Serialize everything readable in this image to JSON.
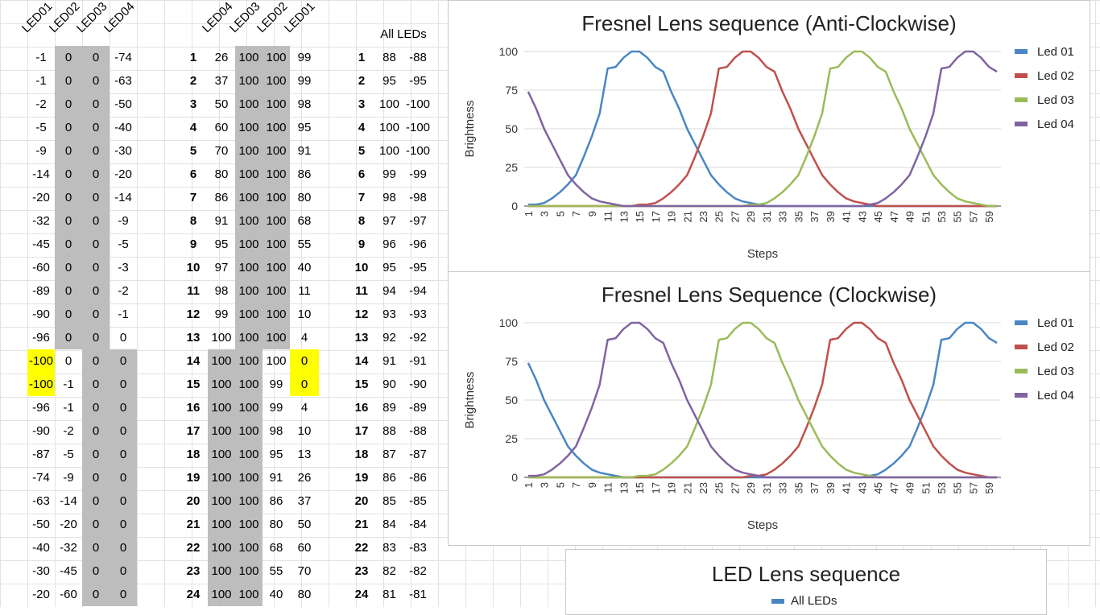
{
  "sheet": {
    "left_headers": [
      "LED01",
      "LED02",
      "LED03",
      "LED04"
    ],
    "mid_headers": [
      "LED04",
      "LED03",
      "LED02",
      "LED01"
    ],
    "right_header": "All LEDs",
    "left_rows": [
      [
        "-1",
        "0",
        "0",
        "-74"
      ],
      [
        "-1",
        "0",
        "0",
        "-63"
      ],
      [
        "-2",
        "0",
        "0",
        "-50"
      ],
      [
        "-5",
        "0",
        "0",
        "-40"
      ],
      [
        "-9",
        "0",
        "0",
        "-30"
      ],
      [
        "-14",
        "0",
        "0",
        "-20"
      ],
      [
        "-20",
        "0",
        "0",
        "-14"
      ],
      [
        "-32",
        "0",
        "0",
        "-9"
      ],
      [
        "-45",
        "0",
        "0",
        "-5"
      ],
      [
        "-60",
        "0",
        "0",
        "-3"
      ],
      [
        "-89",
        "0",
        "0",
        "-2"
      ],
      [
        "-90",
        "0",
        "0",
        "-1"
      ],
      [
        "-96",
        "0",
        "0",
        "0"
      ],
      [
        "-100",
        "0",
        "0",
        "0"
      ],
      [
        "-100",
        "-1",
        "0",
        "0"
      ],
      [
        "-96",
        "-1",
        "0",
        "0"
      ],
      [
        "-90",
        "-2",
        "0",
        "0"
      ],
      [
        "-87",
        "-5",
        "0",
        "0"
      ],
      [
        "-74",
        "-9",
        "0",
        "0"
      ],
      [
        "-63",
        "-14",
        "0",
        "0"
      ],
      [
        "-50",
        "-20",
        "0",
        "0"
      ],
      [
        "-40",
        "-32",
        "0",
        "0"
      ],
      [
        "-30",
        "-45",
        "0",
        "0"
      ],
      [
        "-20",
        "-60",
        "0",
        "0"
      ]
    ],
    "mid_rows": [
      [
        "1",
        "26",
        "100",
        "100",
        "99"
      ],
      [
        "2",
        "37",
        "100",
        "100",
        "99"
      ],
      [
        "3",
        "50",
        "100",
        "100",
        "98"
      ],
      [
        "4",
        "60",
        "100",
        "100",
        "95"
      ],
      [
        "5",
        "70",
        "100",
        "100",
        "91"
      ],
      [
        "6",
        "80",
        "100",
        "100",
        "86"
      ],
      [
        "7",
        "86",
        "100",
        "100",
        "80"
      ],
      [
        "8",
        "91",
        "100",
        "100",
        "68"
      ],
      [
        "9",
        "95",
        "100",
        "100",
        "55"
      ],
      [
        "10",
        "97",
        "100",
        "100",
        "40"
      ],
      [
        "11",
        "98",
        "100",
        "100",
        "11"
      ],
      [
        "12",
        "99",
        "100",
        "100",
        "10"
      ],
      [
        "13",
        "100",
        "100",
        "100",
        "4"
      ],
      [
        "14",
        "100",
        "100",
        "100",
        "0"
      ],
      [
        "15",
        "100",
        "100",
        "99",
        "0"
      ],
      [
        "16",
        "100",
        "100",
        "99",
        "4"
      ],
      [
        "17",
        "100",
        "100",
        "98",
        "10"
      ],
      [
        "18",
        "100",
        "100",
        "95",
        "13"
      ],
      [
        "19",
        "100",
        "100",
        "91",
        "26"
      ],
      [
        "20",
        "100",
        "100",
        "86",
        "37"
      ],
      [
        "21",
        "100",
        "100",
        "80",
        "50"
      ],
      [
        "22",
        "100",
        "100",
        "68",
        "60"
      ],
      [
        "23",
        "100",
        "100",
        "55",
        "70"
      ],
      [
        "24",
        "100",
        "100",
        "40",
        "80"
      ]
    ],
    "right_rows": [
      [
        "1",
        "88",
        "-88"
      ],
      [
        "2",
        "95",
        "-95"
      ],
      [
        "3",
        "100",
        "-100"
      ],
      [
        "4",
        "100",
        "-100"
      ],
      [
        "5",
        "100",
        "-100"
      ],
      [
        "6",
        "99",
        "-99"
      ],
      [
        "7",
        "98",
        "-98"
      ],
      [
        "8",
        "97",
        "-97"
      ],
      [
        "9",
        "96",
        "-96"
      ],
      [
        "10",
        "95",
        "-95"
      ],
      [
        "11",
        "94",
        "-94"
      ],
      [
        "12",
        "93",
        "-93"
      ],
      [
        "13",
        "92",
        "-92"
      ],
      [
        "14",
        "91",
        "-91"
      ],
      [
        "15",
        "90",
        "-90"
      ],
      [
        "16",
        "89",
        "-89"
      ],
      [
        "17",
        "88",
        "-88"
      ],
      [
        "18",
        "87",
        "-87"
      ],
      [
        "19",
        "86",
        "-86"
      ],
      [
        "20",
        "85",
        "-85"
      ],
      [
        "21",
        "84",
        "-84"
      ],
      [
        "22",
        "83",
        "-83"
      ],
      [
        "23",
        "82",
        "-82"
      ],
      [
        "24",
        "81",
        "-81"
      ]
    ]
  },
  "chart_data": [
    {
      "type": "line",
      "title": "Fresnel Lens sequence (Anti-Clockwise)",
      "xlabel": "Steps",
      "ylabel": "Brightness",
      "x": [
        1,
        2,
        3,
        4,
        5,
        6,
        7,
        8,
        9,
        10,
        11,
        12,
        13,
        14,
        15,
        16,
        17,
        18,
        19,
        20,
        21,
        22,
        23,
        24,
        25,
        26,
        27,
        28,
        29,
        30,
        31,
        32,
        33,
        34,
        35,
        36,
        37,
        38,
        39,
        40,
        41,
        42,
        43,
        44,
        45,
        46,
        47,
        48,
        49,
        50,
        51,
        52,
        53,
        54,
        55,
        56,
        57,
        58,
        59,
        60
      ],
      "xticks": [
        "1",
        "3",
        "5",
        "7",
        "9",
        "11",
        "13",
        "15",
        "17",
        "19",
        "21",
        "23",
        "25",
        "27",
        "29",
        "31",
        "33",
        "35",
        "37",
        "39",
        "41",
        "43",
        "45",
        "47",
        "49",
        "51",
        "53",
        "55",
        "57",
        "59"
      ],
      "ylim": [
        0,
        100
      ],
      "yticks": [
        "0",
        "25",
        "50",
        "75",
        "100"
      ],
      "grid": true,
      "legend_position": "right",
      "series": [
        {
          "name": "Led 01",
          "color": "#4a86c5",
          "values": [
            1,
            1,
            2,
            5,
            9,
            14,
            20,
            32,
            45,
            60,
            89,
            90,
            96,
            100,
            100,
            96,
            90,
            87,
            74,
            63,
            50,
            40,
            30,
            20,
            14,
            9,
            5,
            3,
            2,
            1,
            0,
            0,
            0,
            0,
            0,
            0,
            0,
            0,
            0,
            0,
            0,
            0,
            0,
            0,
            0,
            0,
            0,
            0,
            0,
            0,
            0,
            0,
            0,
            0,
            0,
            0,
            0,
            0,
            0,
            0
          ]
        },
        {
          "name": "Led 02",
          "color": "#c0504d",
          "values": [
            0,
            0,
            0,
            0,
            0,
            0,
            0,
            0,
            0,
            0,
            0,
            0,
            0,
            0,
            1,
            1,
            2,
            5,
            9,
            14,
            20,
            32,
            45,
            60,
            89,
            90,
            96,
            100,
            100,
            96,
            90,
            87,
            74,
            63,
            50,
            40,
            30,
            20,
            14,
            9,
            5,
            3,
            2,
            1,
            0,
            0,
            0,
            0,
            0,
            0,
            0,
            0,
            0,
            0,
            0,
            0,
            0,
            0,
            0,
            0
          ]
        },
        {
          "name": "Led 03",
          "color": "#9bbb59",
          "values": [
            0,
            0,
            0,
            0,
            0,
            0,
            0,
            0,
            0,
            0,
            0,
            0,
            0,
            0,
            0,
            0,
            0,
            0,
            0,
            0,
            0,
            0,
            0,
            0,
            0,
            0,
            0,
            0,
            1,
            1,
            2,
            5,
            9,
            14,
            20,
            32,
            45,
            60,
            89,
            90,
            96,
            100,
            100,
            96,
            90,
            87,
            74,
            63,
            50,
            40,
            30,
            20,
            14,
            9,
            5,
            3,
            2,
            1,
            0,
            0
          ]
        },
        {
          "name": "Led 04",
          "color": "#8064a2",
          "values": [
            74,
            63,
            50,
            40,
            30,
            20,
            14,
            9,
            5,
            3,
            2,
            1,
            0,
            0,
            0,
            0,
            0,
            0,
            0,
            0,
            0,
            0,
            0,
            0,
            0,
            0,
            0,
            0,
            0,
            0,
            0,
            0,
            0,
            0,
            0,
            0,
            0,
            0,
            0,
            0,
            0,
            0,
            0,
            1,
            2,
            5,
            9,
            14,
            20,
            32,
            45,
            60,
            89,
            90,
            96,
            100,
            100,
            96,
            90,
            87
          ]
        }
      ]
    },
    {
      "type": "line",
      "title": "Fresnel Lens Sequence (Clockwise)",
      "xlabel": "Steps",
      "ylabel": "Brightness",
      "x": [
        1,
        2,
        3,
        4,
        5,
        6,
        7,
        8,
        9,
        10,
        11,
        12,
        13,
        14,
        15,
        16,
        17,
        18,
        19,
        20,
        21,
        22,
        23,
        24,
        25,
        26,
        27,
        28,
        29,
        30,
        31,
        32,
        33,
        34,
        35,
        36,
        37,
        38,
        39,
        40,
        41,
        42,
        43,
        44,
        45,
        46,
        47,
        48,
        49,
        50,
        51,
        52,
        53,
        54,
        55,
        56,
        57,
        58,
        59,
        60
      ],
      "xticks": [
        "1",
        "3",
        "5",
        "7",
        "9",
        "11",
        "13",
        "15",
        "17",
        "19",
        "21",
        "23",
        "25",
        "27",
        "29",
        "31",
        "33",
        "35",
        "37",
        "39",
        "41",
        "43",
        "45",
        "47",
        "49",
        "51",
        "53",
        "55",
        "57",
        "59"
      ],
      "ylim": [
        0,
        100
      ],
      "yticks": [
        "0",
        "25",
        "50",
        "75",
        "100"
      ],
      "grid": true,
      "legend_position": "right",
      "series": [
        {
          "name": "Led 01",
          "color": "#4a86c5",
          "values": [
            74,
            63,
            50,
            40,
            30,
            20,
            14,
            9,
            5,
            3,
            2,
            1,
            0,
            0,
            0,
            0,
            0,
            0,
            0,
            0,
            0,
            0,
            0,
            0,
            0,
            0,
            0,
            0,
            0,
            0,
            0,
            0,
            0,
            0,
            0,
            0,
            0,
            0,
            0,
            0,
            0,
            0,
            0,
            1,
            2,
            5,
            9,
            14,
            20,
            32,
            45,
            60,
            89,
            90,
            96,
            100,
            100,
            96,
            90,
            87
          ]
        },
        {
          "name": "Led 02",
          "color": "#c0504d",
          "values": [
            0,
            0,
            0,
            0,
            0,
            0,
            0,
            0,
            0,
            0,
            0,
            0,
            0,
            0,
            0,
            0,
            0,
            0,
            0,
            0,
            0,
            0,
            0,
            0,
            0,
            0,
            0,
            0,
            1,
            1,
            2,
            5,
            9,
            14,
            20,
            32,
            45,
            60,
            89,
            90,
            96,
            100,
            100,
            96,
            90,
            87,
            74,
            63,
            50,
            40,
            30,
            20,
            14,
            9,
            5,
            3,
            2,
            1,
            0,
            0
          ]
        },
        {
          "name": "Led 03",
          "color": "#9bbb59",
          "values": [
            0,
            0,
            0,
            0,
            0,
            0,
            0,
            0,
            0,
            0,
            0,
            0,
            0,
            0,
            1,
            1,
            2,
            5,
            9,
            14,
            20,
            32,
            45,
            60,
            89,
            90,
            96,
            100,
            100,
            96,
            90,
            87,
            74,
            63,
            50,
            40,
            30,
            20,
            14,
            9,
            5,
            3,
            2,
            1,
            0,
            0,
            0,
            0,
            0,
            0,
            0,
            0,
            0,
            0,
            0,
            0,
            0,
            0,
            0,
            0
          ]
        },
        {
          "name": "Led 04",
          "color": "#8064a2",
          "values": [
            1,
            1,
            2,
            5,
            9,
            14,
            20,
            32,
            45,
            60,
            89,
            90,
            96,
            100,
            100,
            96,
            90,
            87,
            74,
            63,
            50,
            40,
            30,
            20,
            14,
            9,
            5,
            3,
            2,
            1,
            0,
            0,
            0,
            0,
            0,
            0,
            0,
            0,
            0,
            0,
            0,
            0,
            0,
            0,
            0,
            0,
            0,
            0,
            0,
            0,
            0,
            0,
            0,
            0,
            0,
            0,
            0,
            0,
            0,
            0
          ]
        }
      ]
    },
    {
      "type": "line",
      "title": "LED Lens sequence",
      "legend_position": "top",
      "series": [
        {
          "name": "All LEDs",
          "color": "#4a86c5",
          "values": []
        }
      ]
    }
  ]
}
